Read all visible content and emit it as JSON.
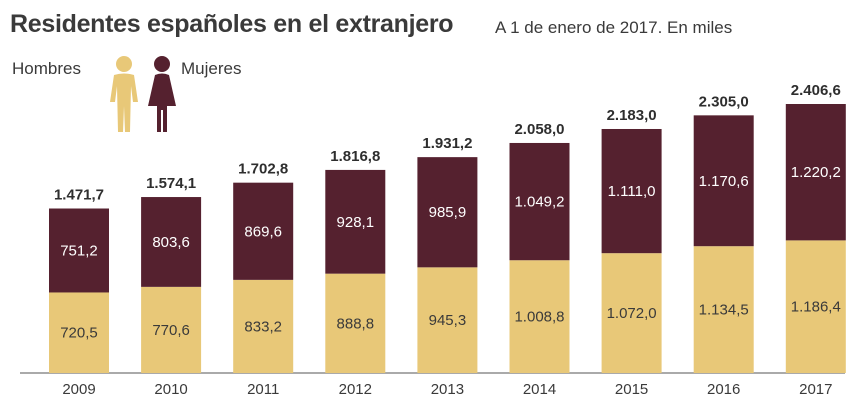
{
  "title": "Residentes españoles en el extranjero",
  "subtitle": "A 1 de enero de 2017. En miles",
  "legend": {
    "men": "Hombres",
    "women": "Mujeres"
  },
  "colors": {
    "men": "#e8c878",
    "women": "#55212f",
    "axis": "#555555"
  },
  "chart_data": {
    "type": "bar",
    "stacked": true,
    "categories": [
      "2009",
      "2010",
      "2011",
      "2012",
      "2013",
      "2014",
      "2015",
      "2016",
      "2017"
    ],
    "series": [
      {
        "name": "Hombres",
        "values": [
          720.5,
          770.6,
          833.2,
          888.8,
          945.3,
          1008.8,
          1072.0,
          1134.5,
          1186.4
        ],
        "labels": [
          "720,5",
          "770,6",
          "833,2",
          "888,8",
          "945,3",
          "1.008,8",
          "1.072,0",
          "1.134,5",
          "1.186,4"
        ]
      },
      {
        "name": "Mujeres",
        "values": [
          751.2,
          803.6,
          869.6,
          928.1,
          985.9,
          1049.2,
          1111.0,
          1170.6,
          1220.2
        ],
        "labels": [
          "751,2",
          "803,6",
          "869,6",
          "928,1",
          "985,9",
          "1.049,2",
          "1.111,0",
          "1.170,6",
          "1.220,2"
        ]
      }
    ],
    "totals": [
      1471.7,
      1574.1,
      1702.8,
      1816.8,
      1931.2,
      2058.0,
      2183.0,
      2305.0,
      2406.6
    ],
    "total_labels": [
      "1.471,7",
      "1.574,1",
      "1.702,8",
      "1.816,8",
      "1.931,2",
      "2.058,0",
      "2.183,0",
      "2.305,0",
      "2.406,6"
    ],
    "ylim": [
      0,
      2406.6
    ],
    "grid": false,
    "legend_position": "top-left"
  }
}
